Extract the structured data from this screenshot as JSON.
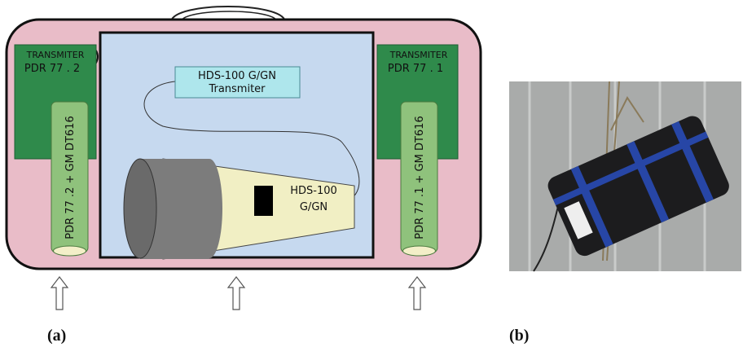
{
  "panel_a": {
    "label": "(a)",
    "left_module": {
      "transmitter_title": "TRANSMITER",
      "transmitter_model": "PDR 77 . 2",
      "probe_label": "PDR 77 .2 + GM DT616"
    },
    "right_module": {
      "transmitter_title": "TRANSMITER",
      "transmitter_model": "PDR 77 . 1",
      "probe_label": "PDR 77 .1 + GM DT616"
    },
    "central_unit": {
      "transmitter": {
        "line1": "HDS-100 G/GN",
        "line2": "Transmiter"
      },
      "detector": {
        "line1": "HDS-100",
        "line2": "G/GN"
      }
    }
  },
  "panel_b": {
    "label": "(b)"
  }
}
